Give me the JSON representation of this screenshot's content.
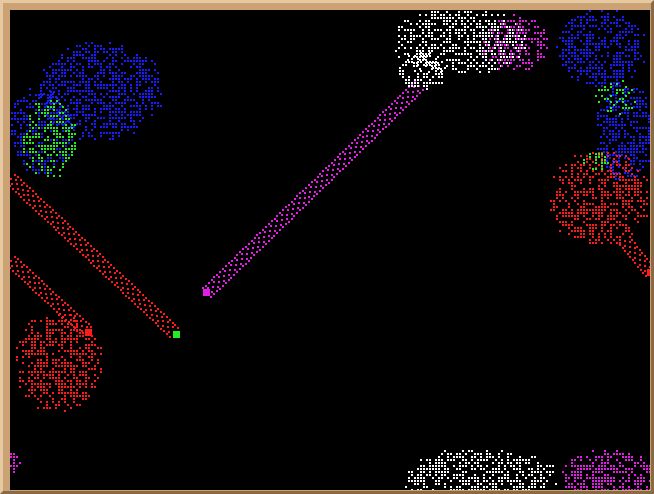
{
  "game": {
    "name": "cellular-automaton-board",
    "palette": {
      "red": "#ff1a1a",
      "blue": "#1a1aff",
      "green": "#22ee22",
      "magenta": "#e21ee2",
      "white": "#ffffff",
      "background": "#000000",
      "frame": "#caa273"
    },
    "colonies": [
      {
        "name": "colony-blue-top-left",
        "color": "blue",
        "density": 0.55,
        "seed": 11
      },
      {
        "name": "colony-green-left",
        "color": "green",
        "density": 0.45,
        "seed": 12
      },
      {
        "name": "colony-red-left",
        "color": "red",
        "density": 0.55,
        "seed": 13
      },
      {
        "name": "colony-white-top",
        "color": "white",
        "density": 0.55,
        "seed": 14
      },
      {
        "name": "colony-magenta-top",
        "color": "magenta",
        "density": 0.45,
        "seed": 15
      },
      {
        "name": "colony-blue-right",
        "color": "blue",
        "density": 0.55,
        "seed": 16
      },
      {
        "name": "colony-red-right",
        "color": "red",
        "density": 0.55,
        "seed": 17
      },
      {
        "name": "colony-green-right",
        "color": "green",
        "density": 0.4,
        "seed": 18
      },
      {
        "name": "colony-white-bottom",
        "color": "white",
        "density": 0.55,
        "seed": 19
      },
      {
        "name": "colony-magenta-bottom-right",
        "color": "magenta",
        "density": 0.55,
        "seed": 20
      },
      {
        "name": "colony-magenta-left-edge",
        "color": "magenta",
        "density": 0.5,
        "seed": 21
      }
    ],
    "gliders": [
      {
        "name": "glider-trail-red-upper",
        "color": "red",
        "tip": "green"
      },
      {
        "name": "glider-trail-red-lower",
        "color": "red",
        "tip": "red"
      },
      {
        "name": "glider-trail-magenta",
        "color": "magenta",
        "tip": "magenta"
      },
      {
        "name": "glider-trail-red-right",
        "color": "red",
        "tip": "red"
      }
    ]
  }
}
